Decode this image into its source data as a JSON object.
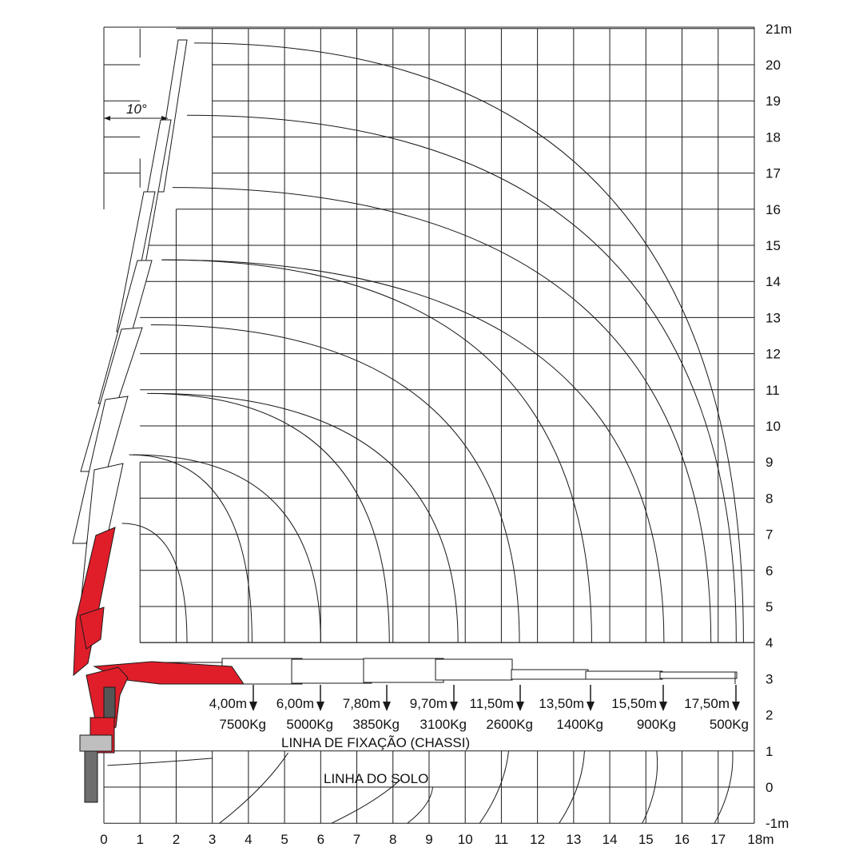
{
  "x_axis": {
    "ticks": [
      "0",
      "1",
      "2",
      "3",
      "4",
      "5",
      "6",
      "7",
      "8",
      "9",
      "10",
      "11",
      "12",
      "13",
      "14",
      "15",
      "16",
      "17",
      "18m"
    ]
  },
  "y_axis": {
    "ticks": [
      "-1m",
      "0",
      "1",
      "2",
      "3",
      "4",
      "5",
      "6",
      "7",
      "8",
      "9",
      "10",
      "11",
      "12",
      "13",
      "14",
      "15",
      "16",
      "17",
      "18",
      "19",
      "20",
      "21m"
    ]
  },
  "angle_label": "10°",
  "lines": {
    "fixation": "LINHA DE FIXAÇÃO (CHASSI)",
    "ground": "LINHA DO SOLO"
  },
  "load_points": [
    {
      "radius": "4,00m",
      "load": "7500Kg"
    },
    {
      "radius": "6,00m",
      "load": "5000Kg"
    },
    {
      "radius": "7,80m",
      "load": "3850Kg"
    },
    {
      "radius": "9,70m",
      "load": "3100Kg"
    },
    {
      "radius": "11,50m",
      "load": "2600Kg"
    },
    {
      "radius": "13,50m",
      "load": "1400Kg"
    },
    {
      "radius": "15,50m",
      "load": "900Kg"
    },
    {
      "radius": "17,50m",
      "load": "500Kg"
    }
  ],
  "colors": {
    "crane_red": "#e01e2a",
    "grid": "#1a1a1a",
    "background": "#ffffff"
  }
}
